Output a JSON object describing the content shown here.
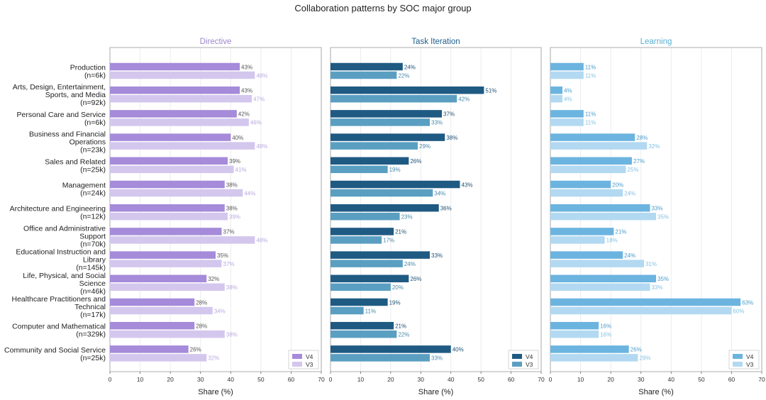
{
  "chart_data": {
    "type": "bar",
    "orientation": "horizontal",
    "title": "Collaboration patterns by SOC major group",
    "xlabel": "Share (%)",
    "xlim": [
      0,
      70
    ],
    "xticks": [
      0,
      10,
      20,
      30,
      40,
      50,
      60,
      70
    ],
    "grid": true,
    "legend_position": "bottom-right",
    "categories": [
      "Production\n(n=6k)",
      "Arts, Design, Entertainment,\nSports, and Media\n(n=92k)",
      "Personal Care and Service\n(n=6k)",
      "Business and Financial\nOperations\n(n=23k)",
      "Sales and Related\n(n=25k)",
      "Management\n(n=24k)",
      "Architecture and Engineering\n(n=12k)",
      "Office and Administrative\nSupport\n(n=70k)",
      "Educational Instruction and\nLibrary\n(n=145k)",
      "Life, Physical, and Social\nScience\n(n=46k)",
      "Healthcare Practitioners and\nTechnical\n(n=17k)",
      "Computer and Mathematical\n(n=329k)",
      "Community and Social Service\n(n=25k)"
    ],
    "panels": [
      {
        "title": "Directive",
        "title_color": "#9b87cc",
        "series": [
          {
            "name": "V4",
            "color": "#a58bd9",
            "label_color": "#555555",
            "values": [
              43,
              43,
              42,
              40,
              39,
              38,
              38,
              37,
              35,
              32,
              28,
              28,
              26
            ]
          },
          {
            "name": "V3",
            "color": "#d4c7ee",
            "label_color": "#b9aadf",
            "values": [
              48,
              47,
              46,
              48,
              41,
              44,
              39,
              48,
              37,
              38,
              34,
              38,
              32
            ]
          }
        ]
      },
      {
        "title": "Task Iteration",
        "title_color": "#1f5f8b",
        "series": [
          {
            "name": "V4",
            "color": "#1f5a83",
            "label_color": "#1f4f73",
            "values": [
              24,
              51,
              37,
              38,
              26,
              43,
              36,
              21,
              33,
              26,
              19,
              21,
              40
            ]
          },
          {
            "name": "V3",
            "color": "#5a9fc2",
            "label_color": "#4a88a8",
            "values": [
              22,
              42,
              33,
              29,
              19,
              34,
              23,
              17,
              24,
              20,
              11,
              22,
              33
            ]
          }
        ]
      },
      {
        "title": "Learning",
        "title_color": "#5aaed3",
        "series": [
          {
            "name": "V4",
            "color": "#6cb4e0",
            "label_color": "#4a9ccc",
            "values": [
              11,
              4,
              11,
              28,
              27,
              20,
              33,
              21,
              24,
              35,
              63,
              16,
              26
            ]
          },
          {
            "name": "V3",
            "color": "#b2d9f1",
            "label_color": "#86c2e4",
            "values": [
              11,
              4,
              11,
              32,
              25,
              24,
              35,
              18,
              31,
              33,
              60,
              16,
              29
            ]
          }
        ]
      }
    ]
  }
}
